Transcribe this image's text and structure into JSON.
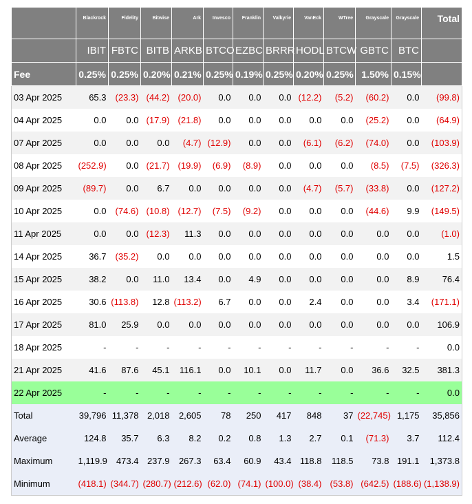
{
  "header": {
    "issuers": [
      "Blackrock",
      "Fidelity",
      "Bitwise",
      "Ark",
      "Invesco",
      "Franklin",
      "Valkyrie",
      "VanEck",
      "WTree",
      "Grayscale",
      "Grayscale"
    ],
    "total_label": "Total",
    "tickers": [
      "IBIT",
      "FBTC",
      "BITB",
      "ARKB",
      "BTCO",
      "EZBC",
      "BRRR",
      "HODL",
      "BTCW",
      "GBTC",
      "BTC"
    ],
    "fee_label": "Fee",
    "fees": [
      "0.25%",
      "0.25%",
      "0.20%",
      "0.21%",
      "0.25%",
      "0.19%",
      "0.25%",
      "0.20%",
      "0.25%",
      "1.50%",
      "0.15%"
    ]
  },
  "rows": [
    {
      "date": "03 Apr 2025",
      "values": [
        "65.3",
        "(23.3)",
        "(44.2)",
        "(20.0)",
        "0.0",
        "0.0",
        "0.0",
        "(12.2)",
        "(5.2)",
        "(60.2)",
        "0.0",
        "(99.8)"
      ]
    },
    {
      "date": "04 Apr 2025",
      "values": [
        "0.0",
        "0.0",
        "(17.9)",
        "(21.8)",
        "0.0",
        "0.0",
        "0.0",
        "0.0",
        "0.0",
        "(25.2)",
        "0.0",
        "(64.9)"
      ]
    },
    {
      "date": "07 Apr 2025",
      "values": [
        "0.0",
        "0.0",
        "0.0",
        "(4.7)",
        "(12.9)",
        "0.0",
        "0.0",
        "(6.1)",
        "(6.2)",
        "(74.0)",
        "0.0",
        "(103.9)"
      ]
    },
    {
      "date": "08 Apr 2025",
      "values": [
        "(252.9)",
        "0.0",
        "(21.7)",
        "(19.9)",
        "(6.9)",
        "(8.9)",
        "0.0",
        "0.0",
        "0.0",
        "(8.5)",
        "(7.5)",
        "(326.3)"
      ]
    },
    {
      "date": "09 Apr 2025",
      "values": [
        "(89.7)",
        "0.0",
        "6.7",
        "0.0",
        "0.0",
        "0.0",
        "0.0",
        "(4.7)",
        "(5.7)",
        "(33.8)",
        "0.0",
        "(127.2)"
      ]
    },
    {
      "date": "10 Apr 2025",
      "values": [
        "0.0",
        "(74.6)",
        "(10.8)",
        "(12.7)",
        "(7.5)",
        "(9.2)",
        "0.0",
        "0.0",
        "0.0",
        "(44.6)",
        "9.9",
        "(149.5)"
      ]
    },
    {
      "date": "11 Apr 2025",
      "values": [
        "0.0",
        "0.0",
        "(12.3)",
        "11.3",
        "0.0",
        "0.0",
        "0.0",
        "0.0",
        "0.0",
        "0.0",
        "0.0",
        "(1.0)"
      ]
    },
    {
      "date": "14 Apr 2025",
      "values": [
        "36.7",
        "(35.2)",
        "0.0",
        "0.0",
        "0.0",
        "0.0",
        "0.0",
        "0.0",
        "0.0",
        "0.0",
        "0.0",
        "1.5"
      ]
    },
    {
      "date": "15 Apr 2025",
      "values": [
        "38.2",
        "0.0",
        "11.0",
        "13.4",
        "0.0",
        "4.9",
        "0.0",
        "0.0",
        "0.0",
        "0.0",
        "8.9",
        "76.4"
      ]
    },
    {
      "date": "16 Apr 2025",
      "values": [
        "30.6",
        "(113.8)",
        "12.8",
        "(113.2)",
        "6.7",
        "0.0",
        "0.0",
        "2.4",
        "0.0",
        "0.0",
        "3.4",
        "(171.1)"
      ]
    },
    {
      "date": "17 Apr 2025",
      "values": [
        "81.0",
        "25.9",
        "0.0",
        "0.0",
        "0.0",
        "0.0",
        "0.0",
        "0.0",
        "0.0",
        "0.0",
        "0.0",
        "106.9"
      ]
    },
    {
      "date": "18 Apr 2025",
      "values": [
        "-",
        "-",
        "-",
        "-",
        "-",
        "-",
        "-",
        "-",
        "-",
        "-",
        "-",
        "0.0"
      ]
    },
    {
      "date": "21 Apr 2025",
      "values": [
        "41.6",
        "87.6",
        "45.1",
        "116.1",
        "0.0",
        "10.1",
        "0.0",
        "11.7",
        "0.0",
        "36.6",
        "32.5",
        "381.3"
      ]
    },
    {
      "date": "22 Apr 2025",
      "highlight": true,
      "values": [
        "-",
        "-",
        "-",
        "-",
        "-",
        "-",
        "-",
        "-",
        "-",
        "-",
        "-",
        "0.0"
      ]
    }
  ],
  "summary": [
    {
      "label": "Total",
      "values": [
        "39,796",
        "11,378",
        "2,018",
        "2,605",
        "78",
        "250",
        "417",
        "848",
        "37",
        "(22,745)",
        "1,175",
        "35,856"
      ]
    },
    {
      "label": "Average",
      "values": [
        "124.8",
        "35.7",
        "6.3",
        "8.2",
        "0.2",
        "0.8",
        "1.3",
        "2.7",
        "0.1",
        "(71.3)",
        "3.7",
        "112.4"
      ]
    },
    {
      "label": "Maximum",
      "values": [
        "1,119.9",
        "473.4",
        "237.9",
        "267.3",
        "63.4",
        "60.9",
        "43.4",
        "118.8",
        "118.5",
        "73.8",
        "191.1",
        "1,373.8"
      ]
    },
    {
      "label": "Minimum",
      "values": [
        "(418.1)",
        "(344.7)",
        "(280.7)",
        "(212.6)",
        "(62.0)",
        "(74.1)",
        "(100.0)",
        "(38.4)",
        "(53.8)",
        "(642.5)",
        "(188.6)",
        "(1,138.9)"
      ]
    }
  ],
  "colors": {
    "header_bg": "#808080",
    "negative": "#e00000",
    "highlight_row": "#99ff99",
    "summary_bg": "#eaeef8",
    "alt_row": "#f2f2f2"
  }
}
